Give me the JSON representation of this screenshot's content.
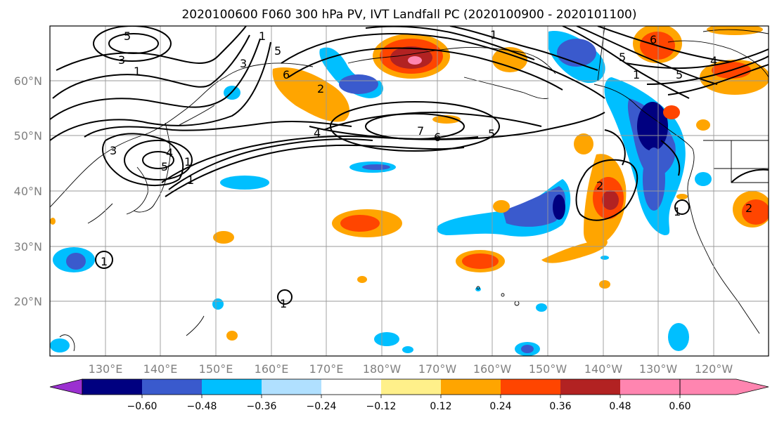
{
  "title": "2020100600 F060 300 hPa PV, IVT Landfall PC (2020100900 - 2020101100)",
  "lat_labels": [
    "60°N",
    "50°N",
    "40°N",
    "30°N",
    "20°N"
  ],
  "lon_labels": [
    "130°E",
    "140°E",
    "150°E",
    "160°E",
    "170°E",
    "180°W",
    "170°W",
    "160°W",
    "150°W",
    "140°W",
    "130°W",
    "120°W"
  ],
  "colorbar": {
    "ticks": [
      "−0.60",
      "−0.48",
      "−0.36",
      "−0.24",
      "−0.12",
      "0.12",
      "0.24",
      "0.36",
      "0.48",
      "0.60"
    ],
    "colors": [
      "#9b30d0",
      "#000080",
      "#3a5acd",
      "#00bfff",
      "#b0e0ff",
      "#ffffff",
      "#fff08a",
      "#ffa500",
      "#ff4500",
      "#b22222",
      "#ff85b0"
    ]
  },
  "contour_labels": [
    "5",
    "3",
    "1",
    "1",
    "3",
    "5",
    "6",
    "2",
    "4",
    "7",
    "6",
    "5",
    "1",
    "4",
    "5",
    "1",
    "2",
    "1",
    "1",
    "5",
    "3",
    "4",
    "1",
    "6",
    "5",
    "2",
    "1",
    "1"
  ]
}
